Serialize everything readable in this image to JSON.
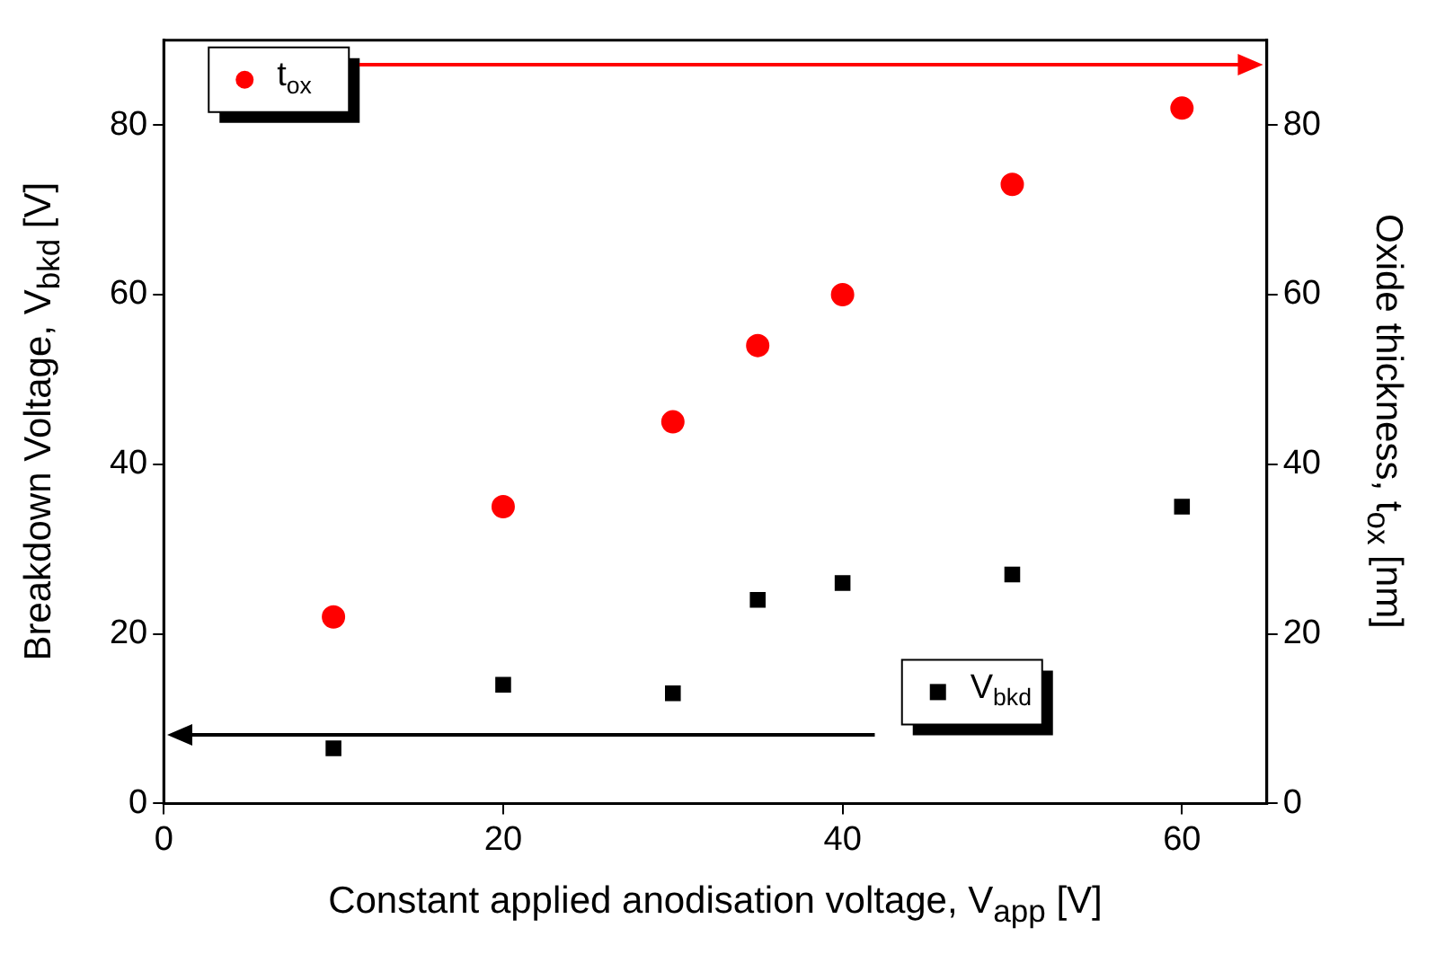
{
  "chart_data": {
    "type": "scatter",
    "xlabel": "Constant applied anodisation voltage, V$_{app}$ [V]",
    "ylabel": "Breakdown Voltage, V$_{bkd}$ [V]",
    "y2label": "Oxide thickness, t$_{ox}$ [nm]",
    "x": [
      10,
      20,
      30,
      35,
      40,
      50,
      60
    ],
    "series": [
      {
        "name": "t$_{ox}$",
        "color": "#ff0000",
        "marker": "circle",
        "axis": "y2",
        "values": [
          22,
          35,
          45,
          54,
          60,
          73,
          82
        ]
      },
      {
        "name": "V$_{bkd}$",
        "color": "#000000",
        "marker": "square",
        "axis": "y",
        "values": [
          6.5,
          14,
          13,
          24,
          26,
          27,
          35
        ]
      }
    ],
    "xlim": [
      0,
      65
    ],
    "xticks": [
      0,
      20,
      40,
      60
    ],
    "ylim": [
      0,
      90
    ],
    "yticks": [
      0,
      20,
      40,
      60,
      80
    ],
    "y2lim": [
      0,
      90
    ],
    "y2ticks": [
      0,
      20,
      40,
      60,
      80
    ],
    "grid": false,
    "legend": "top left"
  }
}
